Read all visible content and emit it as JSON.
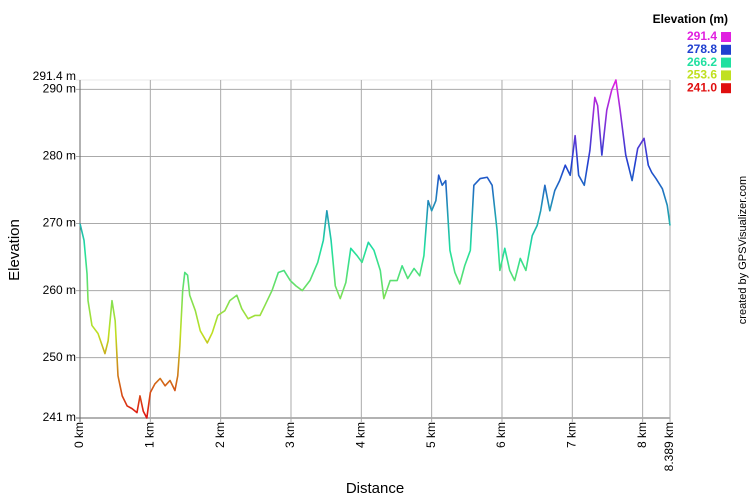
{
  "chart_data": {
    "type": "line",
    "xlabel": "Distance",
    "ylabel": "Elevation",
    "credit": "created by GPSVisualizer.com",
    "legend_title": "Elevation (m)",
    "color_scale": [
      {
        "value": 291.4,
        "label": "291.4",
        "color": "#e020e0"
      },
      {
        "value": 278.8,
        "label": "278.8",
        "color": "#2040d0"
      },
      {
        "value": 266.2,
        "label": "266.2",
        "color": "#20e0a0"
      },
      {
        "value": 253.6,
        "label": "253.6",
        "color": "#c0e020"
      },
      {
        "value": 241.0,
        "label": "241.0",
        "color": "#e01010"
      }
    ],
    "grid": true,
    "xlim": [
      0,
      8.389
    ],
    "ylim": [
      241,
      291.4
    ],
    "xticks": [
      {
        "value": 0,
        "label": "0 km"
      },
      {
        "value": 1,
        "label": "1 km"
      },
      {
        "value": 2,
        "label": "2 km"
      },
      {
        "value": 3,
        "label": "3 km"
      },
      {
        "value": 4,
        "label": "4 km"
      },
      {
        "value": 5,
        "label": "5 km"
      },
      {
        "value": 6,
        "label": "6 km"
      },
      {
        "value": 7,
        "label": "7 km"
      },
      {
        "value": 8,
        "label": "8 km"
      },
      {
        "value": 8.389,
        "label": "8.389 km"
      }
    ],
    "yticks": [
      {
        "value": 241,
        "label": "241 m"
      },
      {
        "value": 250,
        "label": "250 m"
      },
      {
        "value": 260,
        "label": "260 m"
      },
      {
        "value": 270,
        "label": "270 m"
      },
      {
        "value": 280,
        "label": "280 m"
      },
      {
        "value": 290,
        "label": "290 m"
      },
      {
        "value": 291.4,
        "label": "291.4 m"
      }
    ],
    "x": [
      0,
      0.057,
      0.1,
      0.114,
      0.17,
      0.256,
      0.355,
      0.4,
      0.455,
      0.5,
      0.54,
      0.6,
      0.67,
      0.74,
      0.81,
      0.853,
      0.9,
      0.95,
      1.0,
      1.066,
      1.14,
      1.21,
      1.28,
      1.35,
      1.39,
      1.42,
      1.46,
      1.49,
      1.53,
      1.56,
      1.64,
      1.71,
      1.81,
      1.88,
      1.96,
      2.06,
      2.13,
      2.23,
      2.3,
      2.39,
      2.49,
      2.56,
      2.63,
      2.73,
      2.82,
      2.9,
      2.99,
      3.07,
      3.16,
      3.27,
      3.38,
      3.46,
      3.51,
      3.57,
      3.63,
      3.7,
      3.78,
      3.85,
      3.94,
      4.01,
      4.1,
      4.18,
      4.27,
      4.32,
      4.41,
      4.51,
      4.58,
      4.66,
      4.75,
      4.83,
      4.89,
      4.95,
      5.0,
      5.06,
      5.1,
      5.15,
      5.2,
      5.26,
      5.33,
      5.4,
      5.47,
      5.55,
      5.6,
      5.69,
      5.79,
      5.86,
      5.93,
      5.97,
      6.04,
      6.11,
      6.18,
      6.26,
      6.34,
      6.43,
      6.5,
      6.55,
      6.61,
      6.68,
      6.75,
      6.82,
      6.9,
      6.97,
      7.04,
      7.09,
      7.17,
      7.25,
      7.32,
      7.36,
      7.42,
      7.49,
      7.56,
      7.62,
      7.68,
      7.76,
      7.85,
      7.93,
      8.02,
      8.08,
      8.13,
      8.19,
      8.28,
      8.35,
      8.389
    ],
    "values": [
      270,
      267.5,
      262.5,
      258.5,
      254.8,
      253.6,
      250.6,
      252.5,
      258.5,
      255.5,
      247.3,
      244.3,
      242.8,
      242.4,
      241.8,
      244.3,
      242,
      241,
      244.8,
      246.1,
      246.9,
      245.8,
      246.6,
      245.1,
      247.3,
      251.8,
      260,
      262.7,
      262.3,
      259.3,
      257,
      254,
      252.2,
      253.7,
      256.3,
      257,
      258.5,
      259.3,
      257.3,
      255.8,
      256.3,
      256.3,
      257.8,
      260,
      262.7,
      263,
      261.5,
      260.7,
      260,
      261.5,
      264.2,
      267.5,
      271.9,
      267.5,
      260.7,
      258.8,
      261.2,
      266.3,
      265.2,
      264.2,
      267.2,
      266,
      263,
      258.8,
      261.5,
      261.5,
      263.7,
      261.8,
      263.3,
      262.2,
      265.2,
      273.4,
      271.9,
      273.4,
      277.2,
      275.7,
      276.4,
      266,
      262.7,
      261,
      263.7,
      266,
      275.7,
      276.7,
      276.9,
      275.7,
      269,
      263,
      266.3,
      263,
      261.5,
      264.8,
      263,
      268.2,
      269.7,
      271.9,
      275.7,
      271.9,
      274.9,
      276.4,
      278.7,
      277.2,
      283.1,
      277.2,
      275.7,
      280.9,
      288.8,
      287.6,
      280.2,
      286.9,
      289.9,
      291.4,
      286.9,
      280.2,
      276.4,
      281.2,
      282.7,
      278.7,
      277.6,
      276.7,
      275.2,
      272.7,
      269.7
    ]
  }
}
